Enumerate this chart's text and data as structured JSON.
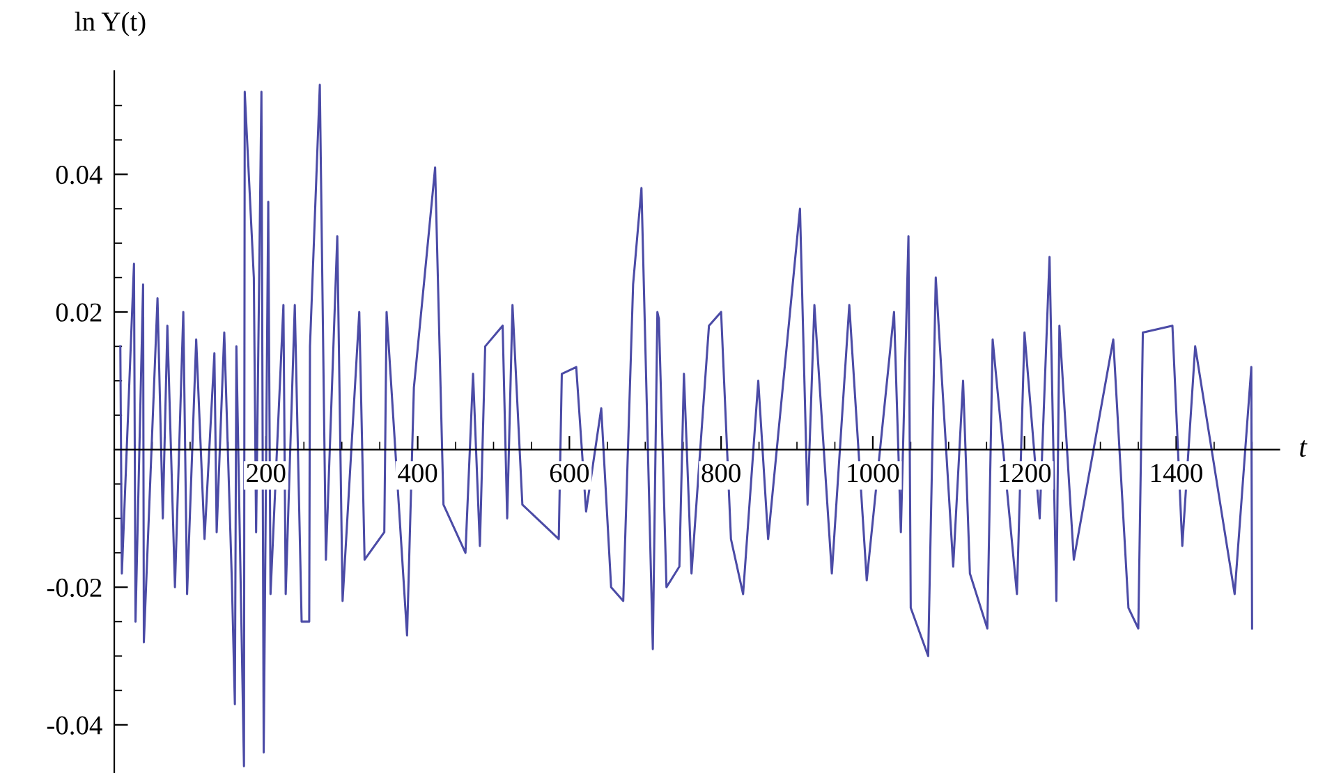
{
  "chart_data": {
    "type": "line",
    "xlabel": "t",
    "ylabel": "ln Y(t)",
    "x": [
      8,
      10,
      26,
      28,
      38,
      39,
      57,
      64,
      70,
      80,
      91,
      96,
      108,
      119,
      132,
      135,
      145,
      155,
      159,
      161,
      171,
      172,
      184,
      187,
      194,
      197,
      203,
      206,
      223,
      226,
      238,
      247,
      257,
      258,
      271,
      279,
      294,
      301,
      323,
      330,
      356,
      359,
      386,
      395,
      423,
      434,
      463,
      473,
      482,
      489,
      512,
      518,
      525,
      538,
      586,
      590,
      609,
      622,
      642,
      655,
      671,
      684,
      695,
      710,
      716,
      718,
      728,
      745,
      751,
      761,
      784,
      800,
      813,
      829,
      849,
      862,
      904,
      914,
      923,
      946,
      969,
      992,
      1028,
      1037,
      1047,
      1050,
      1073,
      1083,
      1106,
      1119,
      1128,
      1151,
      1158,
      1190,
      1200,
      1220,
      1233,
      1242,
      1246,
      1265,
      1317,
      1337,
      1350,
      1356,
      1395,
      1408,
      1425,
      1477,
      1499,
      1500
    ],
    "series": [
      {
        "color": "#4b4ba6",
        "values": [
          0.015,
          -0.018,
          0.027,
          -0.025,
          0.024,
          -0.028,
          0.022,
          -0.01,
          0.018,
          -0.02,
          0.02,
          -0.021,
          0.016,
          -0.013,
          0.014,
          -0.012,
          0.017,
          -0.019,
          -0.037,
          0.015,
          -0.046,
          0.052,
          0.025,
          -0.012,
          0.052,
          -0.044,
          0.036,
          -0.021,
          0.021,
          -0.021,
          0.021,
          -0.025,
          -0.025,
          0.015,
          0.053,
          -0.016,
          0.031,
          -0.022,
          0.02,
          -0.016,
          -0.012,
          0.02,
          -0.027,
          0.009,
          0.041,
          -0.008,
          -0.015,
          0.011,
          -0.014,
          0.015,
          0.018,
          -0.01,
          0.021,
          -0.008,
          -0.013,
          0.011,
          0.012,
          -0.009,
          0.006,
          -0.02,
          -0.022,
          0.024,
          0.038,
          -0.029,
          0.02,
          0.019,
          -0.02,
          -0.017,
          0.011,
          -0.018,
          0.018,
          0.02,
          -0.013,
          -0.021,
          0.01,
          -0.013,
          0.035,
          -0.008,
          0.021,
          -0.018,
          0.021,
          -0.019,
          0.02,
          -0.012,
          0.031,
          -0.023,
          -0.03,
          0.025,
          -0.017,
          0.01,
          -0.018,
          -0.026,
          0.016,
          -0.021,
          0.017,
          -0.01,
          0.028,
          -0.022,
          0.018,
          -0.016,
          0.016,
          -0.023,
          -0.026,
          0.017,
          0.018,
          -0.014,
          0.015,
          -0.021,
          0.012,
          -0.026
        ]
      }
    ],
    "xlim": [
      0,
      1536
    ],
    "ylim": [
      -0.047,
      0.055
    ],
    "xticks": [
      {
        "value": 50,
        "label": null
      },
      {
        "value": 100,
        "label": null
      },
      {
        "value": 150,
        "label": null
      },
      200,
      {
        "value": 250,
        "label": null
      },
      {
        "value": 300,
        "label": null
      },
      {
        "value": 350,
        "label": null
      },
      400,
      {
        "value": 450,
        "label": null
      },
      {
        "value": 500,
        "label": null
      },
      {
        "value": 550,
        "label": null
      },
      600,
      {
        "value": 650,
        "label": null
      },
      {
        "value": 700,
        "label": null
      },
      {
        "value": 750,
        "label": null
      },
      800,
      {
        "value": 850,
        "label": null
      },
      {
        "value": 900,
        "label": null
      },
      {
        "value": 950,
        "label": null
      },
      1000,
      {
        "value": 1050,
        "label": null
      },
      {
        "value": 1100,
        "label": null
      },
      {
        "value": 1150,
        "label": null
      },
      1200,
      {
        "value": 1250,
        "label": null
      },
      {
        "value": 1300,
        "label": null
      },
      {
        "value": 1350,
        "label": null
      },
      1400,
      {
        "value": 1450,
        "label": null
      },
      {
        "value": 1500,
        "label": null
      }
    ],
    "yticks": [
      -0.04,
      {
        "value": -0.035,
        "label": null
      },
      {
        "value": -0.03,
        "label": null
      },
      {
        "value": -0.025,
        "label": null
      },
      -0.02,
      {
        "value": -0.015,
        "label": null
      },
      {
        "value": -0.01,
        "label": null
      },
      {
        "value": -0.005,
        "label": null
      },
      {
        "value": 0.005,
        "label": null
      },
      {
        "value": 0.01,
        "label": null
      },
      {
        "value": 0.015,
        "label": null
      },
      0.02,
      {
        "value": 0.025,
        "label": null
      },
      {
        "value": 0.03,
        "label": null
      },
      {
        "value": 0.035,
        "label": null
      },
      0.04,
      {
        "value": 0.045,
        "label": null
      },
      {
        "value": 0.05,
        "label": null
      }
    ],
    "grid": false,
    "legend": false
  }
}
